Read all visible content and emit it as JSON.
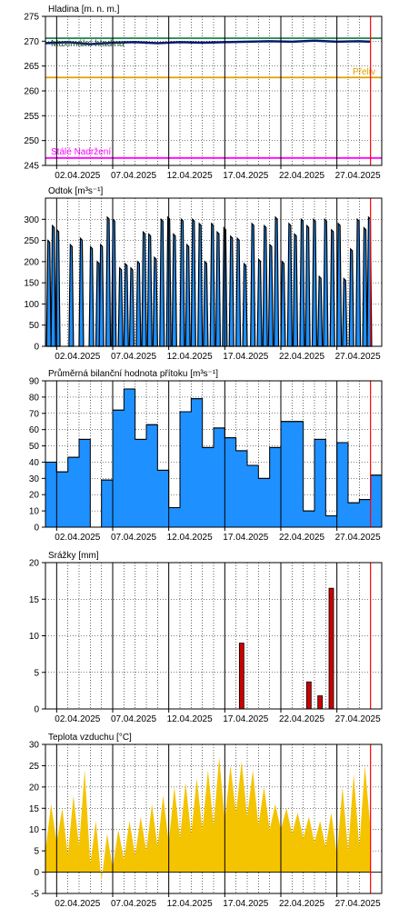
{
  "colors": {
    "frame": "#000000",
    "minor_grid": "#000000",
    "today_line": "#ff0000",
    "bar_fill": "#1e90ff",
    "rain_fill": "#cc0000",
    "temp_fill": "#f5c400",
    "hladina_line": "#0a1a6e",
    "max_line": "#2e8b57",
    "prev_line": "#e0a000",
    "stale_line": "#ff00ff"
  },
  "x_ticks": [
    "02.04.2025",
    "07.04.2025",
    "12.04.2025",
    "17.04.2025",
    "22.04.2025",
    "27.04.2025"
  ],
  "x_range_days": [
    0,
    30
  ],
  "today_day": 29.0,
  "chart_data": [
    {
      "id": "hladina",
      "type": "line",
      "ylabel": "Hladina [m. n. m.]",
      "ylim": [
        245,
        275
      ],
      "yticks": [
        245,
        250,
        255,
        260,
        265,
        270,
        275
      ],
      "reference_lines": [
        {
          "name": "Maximální hladina",
          "value": 270.6,
          "color": "max_line"
        },
        {
          "name": "Přeliv",
          "value": 262.7,
          "color": "prev_line"
        },
        {
          "name": "Stálé Nadržení",
          "value": 246.5,
          "color": "stale_line"
        }
      ],
      "series": [
        {
          "x": [
            0,
            2,
            4,
            6,
            8,
            10,
            12,
            14,
            16,
            18,
            20,
            22,
            24,
            26,
            28,
            29
          ],
          "values": [
            269.6,
            269.8,
            269.4,
            269.7,
            269.8,
            269.6,
            269.8,
            269.7,
            269.8,
            269.9,
            270.0,
            269.9,
            270.1,
            269.9,
            270.0,
            269.9
          ]
        }
      ]
    },
    {
      "id": "odtok",
      "type": "area",
      "ylabel": "Odtok [m³s⁻¹]",
      "ylim": [
        0,
        350
      ],
      "yticks": [
        0,
        50,
        100,
        150,
        200,
        250,
        300
      ],
      "series": [
        {
          "x": [
            0.3,
            0.7,
            1.1,
            2.3,
            3.2,
            4.1,
            4.7,
            5.0,
            5.6,
            6.1,
            6.7,
            7.2,
            7.7,
            8.3,
            8.8,
            9.3,
            9.8,
            10.4,
            11.0,
            11.5,
            12.2,
            12.7,
            13.2,
            13.8,
            14.3,
            14.9,
            15.4,
            16.0,
            16.6,
            17.2,
            17.8,
            18.5,
            19.1,
            19.6,
            20.1,
            20.6,
            21.2,
            21.8,
            22.3,
            22.9,
            23.4,
            24.0,
            24.5,
            25.0,
            25.6,
            26.2,
            26.7,
            27.3,
            27.9,
            28.5,
            28.9
          ],
          "values": [
            250,
            285,
            275,
            240,
            255,
            235,
            200,
            240,
            305,
            300,
            185,
            195,
            185,
            200,
            270,
            265,
            210,
            300,
            305,
            265,
            300,
            240,
            300,
            290,
            200,
            290,
            270,
            280,
            260,
            255,
            195,
            290,
            205,
            285,
            240,
            305,
            200,
            290,
            265,
            300,
            285,
            300,
            165,
            300,
            275,
            290,
            160,
            230,
            300,
            280,
            305
          ]
        }
      ]
    },
    {
      "id": "bilancni",
      "type": "area",
      "ylabel": "Průměrná bilanční hodnota přítoku [m³s⁻¹]",
      "ylim": [
        0,
        90
      ],
      "yticks": [
        0,
        10,
        20,
        30,
        40,
        50,
        60,
        70,
        80,
        90
      ],
      "categories": [
        "01.04",
        "02.04",
        "03.04",
        "04.04",
        "05.04",
        "06.04",
        "07.04",
        "08.04",
        "09.04",
        "10.04",
        "11.04",
        "12.04",
        "13.04",
        "14.04",
        "15.04",
        "16.04",
        "17.04",
        "18.04",
        "19.04",
        "20.04",
        "21.04",
        "22.04",
        "23.04",
        "24.04",
        "25.04",
        "26.04",
        "27.04",
        "28.04",
        "29.04",
        "30.04"
      ],
      "values": [
        40,
        34,
        43,
        54,
        0,
        29,
        72,
        85,
        54,
        63,
        35,
        12,
        71,
        79,
        49,
        61,
        55,
        47,
        38,
        30,
        49,
        65,
        65,
        10,
        54,
        7,
        52,
        15,
        17,
        32
      ]
    },
    {
      "id": "srazky",
      "type": "bar",
      "ylabel": "Srážky [mm]",
      "ylim": [
        0,
        20
      ],
      "yticks": [
        0,
        5,
        10,
        15,
        20
      ],
      "categories": [
        "17.04",
        "23.04",
        "24.04",
        "25.04"
      ],
      "x": [
        17,
        23,
        24,
        25
      ],
      "values": [
        9,
        3.7,
        1.8,
        16.5
      ]
    },
    {
      "id": "teplota",
      "type": "area",
      "ylabel": "Teplota vzduchu [°C]",
      "ylim": [
        -5,
        30
      ],
      "yticks": [
        -5,
        0,
        5,
        10,
        15,
        20,
        25,
        30
      ],
      "series": [
        {
          "x": [
            0,
            0.5,
            1.0,
            1.5,
            2.0,
            2.5,
            3.0,
            3.5,
            4.0,
            4.5,
            5.0,
            5.5,
            6.0,
            6.5,
            7.0,
            7.5,
            8.0,
            8.5,
            9.0,
            9.5,
            10.0,
            10.5,
            11.0,
            11.5,
            12.0,
            12.5,
            13.0,
            13.5,
            14.0,
            14.5,
            15.0,
            15.5,
            16.0,
            16.5,
            17.0,
            17.5,
            18.0,
            18.5,
            19.0,
            19.5,
            20.0,
            20.5,
            21.0,
            21.5,
            22.0,
            22.5,
            23.0,
            23.5,
            24.0,
            24.5,
            25.0,
            25.5,
            26.0,
            26.5,
            27.0,
            27.5,
            28.0,
            28.5,
            29.0
          ],
          "values": [
            5,
            16,
            7,
            15,
            4,
            18,
            6,
            24,
            2,
            12,
            -2,
            9,
            1,
            10,
            3,
            12,
            4,
            13,
            5,
            16,
            6,
            18,
            7,
            20,
            8,
            21,
            9,
            22,
            10,
            24,
            11,
            27,
            12,
            25,
            14,
            26,
            13,
            24,
            11,
            20,
            10,
            16,
            10,
            15,
            9,
            14,
            8,
            13,
            7,
            12,
            6,
            14,
            4,
            20,
            5,
            23,
            6,
            25,
            10
          ]
        }
      ]
    }
  ]
}
